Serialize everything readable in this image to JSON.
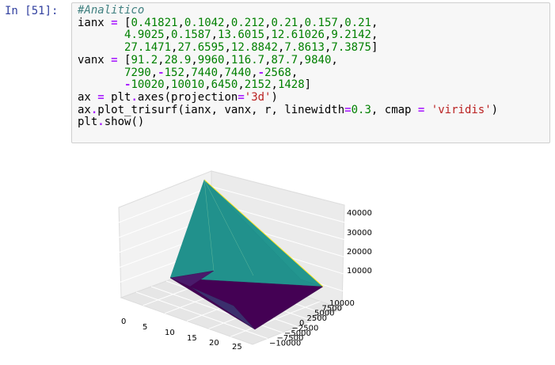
{
  "cell": {
    "prompt": "In [51]:",
    "code_lines": [
      [
        {
          "c": "cm",
          "t": "#Analitico"
        }
      ],
      [
        {
          "c": "d",
          "t": "ianx "
        },
        {
          "c": "op",
          "t": "="
        },
        {
          "c": "p",
          "t": " ["
        },
        {
          "c": "n",
          "t": "0.41821"
        },
        {
          "c": "p",
          "t": ","
        },
        {
          "c": "n",
          "t": "0.1042"
        },
        {
          "c": "p",
          "t": ","
        },
        {
          "c": "n",
          "t": "0.212"
        },
        {
          "c": "p",
          "t": ","
        },
        {
          "c": "n",
          "t": "0.21"
        },
        {
          "c": "p",
          "t": ","
        },
        {
          "c": "n",
          "t": "0.157"
        },
        {
          "c": "p",
          "t": ","
        },
        {
          "c": "n",
          "t": "0.21"
        },
        {
          "c": "p",
          "t": ","
        }
      ],
      [
        {
          "c": "d",
          "t": "       "
        },
        {
          "c": "n",
          "t": "4.9025"
        },
        {
          "c": "p",
          "t": ","
        },
        {
          "c": "n",
          "t": "0.1587"
        },
        {
          "c": "p",
          "t": ","
        },
        {
          "c": "n",
          "t": "13.6015"
        },
        {
          "c": "p",
          "t": ","
        },
        {
          "c": "n",
          "t": "12.61026"
        },
        {
          "c": "p",
          "t": ","
        },
        {
          "c": "n",
          "t": "9.2142"
        },
        {
          "c": "p",
          "t": ","
        }
      ],
      [
        {
          "c": "d",
          "t": "       "
        },
        {
          "c": "n",
          "t": "27.1471"
        },
        {
          "c": "p",
          "t": ","
        },
        {
          "c": "n",
          "t": "27.6595"
        },
        {
          "c": "p",
          "t": ","
        },
        {
          "c": "n",
          "t": "12.8842"
        },
        {
          "c": "p",
          "t": ","
        },
        {
          "c": "n",
          "t": "7.8613"
        },
        {
          "c": "p",
          "t": ","
        },
        {
          "c": "n",
          "t": "7.3875"
        },
        {
          "c": "p",
          "t": "]"
        }
      ],
      [
        {
          "c": "d",
          "t": "vanx "
        },
        {
          "c": "op",
          "t": "="
        },
        {
          "c": "p",
          "t": " ["
        },
        {
          "c": "n",
          "t": "91.2"
        },
        {
          "c": "p",
          "t": ","
        },
        {
          "c": "n",
          "t": "28.9"
        },
        {
          "c": "p",
          "t": ","
        },
        {
          "c": "n",
          "t": "9960"
        },
        {
          "c": "p",
          "t": ","
        },
        {
          "c": "n",
          "t": "116.7"
        },
        {
          "c": "p",
          "t": ","
        },
        {
          "c": "n",
          "t": "87.7"
        },
        {
          "c": "p",
          "t": ","
        },
        {
          "c": "n",
          "t": "9840"
        },
        {
          "c": "p",
          "t": ","
        }
      ],
      [
        {
          "c": "d",
          "t": "       "
        },
        {
          "c": "n",
          "t": "7290"
        },
        {
          "c": "p",
          "t": ","
        },
        {
          "c": "op",
          "t": "-"
        },
        {
          "c": "n",
          "t": "152"
        },
        {
          "c": "p",
          "t": ","
        },
        {
          "c": "n",
          "t": "7440"
        },
        {
          "c": "p",
          "t": ","
        },
        {
          "c": "n",
          "t": "7440"
        },
        {
          "c": "p",
          "t": ","
        },
        {
          "c": "op",
          "t": "-"
        },
        {
          "c": "n",
          "t": "2568"
        },
        {
          "c": "p",
          "t": ","
        }
      ],
      [
        {
          "c": "d",
          "t": "       "
        },
        {
          "c": "op",
          "t": "-"
        },
        {
          "c": "n",
          "t": "10020"
        },
        {
          "c": "p",
          "t": ","
        },
        {
          "c": "n",
          "t": "10010"
        },
        {
          "c": "p",
          "t": ","
        },
        {
          "c": "n",
          "t": "6450"
        },
        {
          "c": "p",
          "t": ","
        },
        {
          "c": "n",
          "t": "2152"
        },
        {
          "c": "p",
          "t": ","
        },
        {
          "c": "n",
          "t": "1428"
        },
        {
          "c": "p",
          "t": "]"
        }
      ],
      [
        {
          "c": "d",
          "t": "ax "
        },
        {
          "c": "op",
          "t": "="
        },
        {
          "c": "d",
          "t": " plt"
        },
        {
          "c": "op",
          "t": "."
        },
        {
          "c": "d",
          "t": "axes(projection"
        },
        {
          "c": "op",
          "t": "="
        },
        {
          "c": "s",
          "t": "'3d'"
        },
        {
          "c": "d",
          "t": ")"
        }
      ],
      [
        {
          "c": "d",
          "t": "ax"
        },
        {
          "c": "op",
          "t": "."
        },
        {
          "c": "d",
          "t": "plot_trisurf(ianx, vanx, r, linewidth"
        },
        {
          "c": "op",
          "t": "="
        },
        {
          "c": "n",
          "t": "0.3"
        },
        {
          "c": "d",
          "t": ", cmap "
        },
        {
          "c": "op",
          "t": "="
        },
        {
          "c": "d",
          "t": " "
        },
        {
          "c": "s",
          "t": "'viridis'"
        },
        {
          "c": "d",
          "t": ")"
        }
      ],
      [
        {
          "c": "d",
          "t": "plt"
        },
        {
          "c": "op",
          "t": "."
        },
        {
          "c": "d",
          "t": "show()"
        }
      ]
    ]
  },
  "chart_data": {
    "type": "3d-surface",
    "colormap": "viridis",
    "x_ticks": [
      "0",
      "5",
      "10",
      "15",
      "20",
      "25"
    ],
    "y_ticks": [
      "10000",
      "7500",
      "5000",
      "2500",
      "0",
      "−2500",
      "−5000",
      "−7500",
      "−10000"
    ],
    "z_ticks": [
      "10000",
      "20000",
      "30000",
      "40000"
    ],
    "grid": true,
    "colors": {
      "teal": "#21918c",
      "purple": "#440154",
      "indigo": "#3b2f6d",
      "yellow": "#fde725",
      "pane": "#f2f2f2",
      "pane_right": "#ebebeb",
      "floor": "#e6e6e6"
    }
  }
}
